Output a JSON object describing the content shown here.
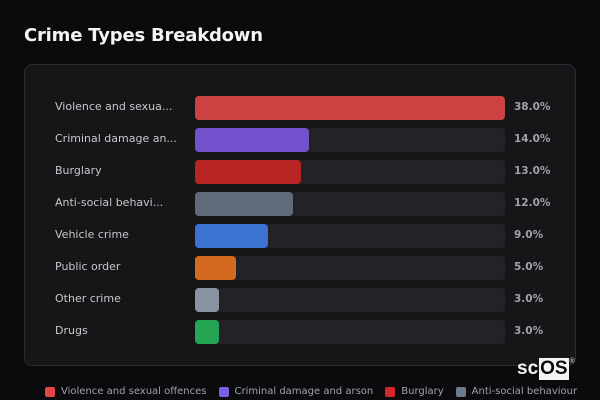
{
  "title": "Crime Types Breakdown",
  "watermark": {
    "prefix": "sc",
    "boxed": "OS",
    "mark": "®"
  },
  "rows": [
    {
      "label": "Violence and sexua...",
      "full": "Violence and sexual offences",
      "value": 38.0,
      "pct": "38.0%",
      "color": "#cc4141"
    },
    {
      "label": "Criminal damage an...",
      "full": "Criminal damage and arson",
      "value": 14.0,
      "pct": "14.0%",
      "color": "#7451cc"
    },
    {
      "label": "Burglary",
      "full": "Burglary",
      "value": 13.0,
      "pct": "13.0%",
      "color": "#b72525"
    },
    {
      "label": "Anti-social behavi...",
      "full": "Anti-social behaviour",
      "value": 12.0,
      "pct": "12.0%",
      "color": "#5f6b7b"
    },
    {
      "label": "Vehicle crime",
      "full": "Vehicle crime",
      "value": 9.0,
      "pct": "9.0%",
      "color": "#3a73d1"
    },
    {
      "label": "Public order",
      "full": "Public order",
      "value": 5.0,
      "pct": "5.0%",
      "color": "#d46a1f"
    },
    {
      "label": "Other crime",
      "full": "Other crime",
      "value": 3.0,
      "pct": "3.0%",
      "color": "#8a93a3"
    },
    {
      "label": "Drugs",
      "full": "Drugs",
      "value": 3.0,
      "pct": "3.0%",
      "color": "#23a553"
    }
  ],
  "legend": [
    {
      "label": "Violence and sexual offences",
      "color": "#e04646"
    },
    {
      "label": "Criminal damage and arson",
      "color": "#7c5ce0"
    },
    {
      "label": "Burglary",
      "color": "#d42a2a"
    },
    {
      "label": "Anti-social behaviour",
      "color": "#6b7a8e"
    }
  ],
  "chart_data": {
    "type": "bar",
    "orientation": "horizontal",
    "title": "Crime Types Breakdown",
    "categories": [
      "Violence and sexual offences",
      "Criminal damage and arson",
      "Burglary",
      "Anti-social behaviour",
      "Vehicle crime",
      "Public order",
      "Other crime",
      "Drugs"
    ],
    "values": [
      38.0,
      14.0,
      13.0,
      12.0,
      9.0,
      5.0,
      3.0,
      3.0
    ],
    "value_labels": [
      "38.0%",
      "14.0%",
      "13.0%",
      "12.0%",
      "9.0%",
      "5.0%",
      "3.0%",
      "3.0%"
    ],
    "unit": "%",
    "xlabel": "",
    "ylabel": "",
    "xlim": [
      0,
      38
    ],
    "grid": false,
    "legend_position": "bottom",
    "legend": [
      "Violence and sexual offences",
      "Criminal damage and arson",
      "Burglary",
      "Anti-social behaviour"
    ]
  }
}
